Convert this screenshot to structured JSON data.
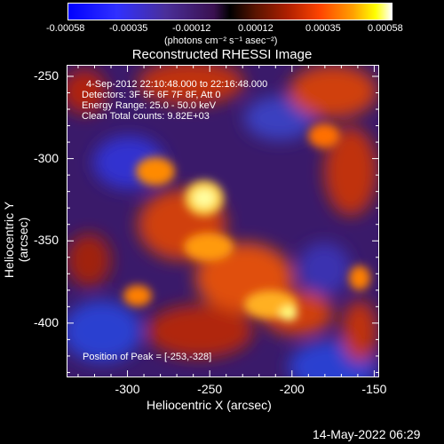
{
  "colorbar": {
    "ticks": [
      "-0.00058",
      "-0.00035",
      "-0.00012",
      "0.00012",
      "0.00035",
      "0.00058"
    ],
    "units": "(photons cm⁻² s⁻¹ asec⁻²)"
  },
  "info": {
    "time_range": "4-Sep-2012 22:10:48.000 to 22:16:48.000",
    "detectors": "Detectors: 3F 5F 6F 7F 8F, Att 0",
    "energy": "Energy Range: 25.0 - 50.0 keV",
    "clean": "Clean     Total counts: 9.82E+03",
    "peak": "Position of Peak = [-253,-328]"
  },
  "footer": {
    "date": "14-May-2022 06:29"
  },
  "chart_data": {
    "type": "heatmap",
    "title": "Reconstructed RHESSI Image",
    "xlabel": "Heliocentric X (arcsec)",
    "ylabel": "Heliocentric Y (arcsec)",
    "xlim": [
      -337,
      -147
    ],
    "ylim": [
      -433,
      -243
    ],
    "x_ticks": [
      -300,
      -250,
      -200,
      -150
    ],
    "y_ticks": [
      -250,
      -300,
      -350,
      -400
    ],
    "x_tick_labels": [
      "-300",
      "-250",
      "-200",
      "-150"
    ],
    "y_tick_labels": [
      "-250",
      "-300",
      "-350",
      "-400"
    ],
    "value_range": [
      -0.00058,
      0.00058
    ],
    "peak": [
      -253,
      -328
    ]
  }
}
